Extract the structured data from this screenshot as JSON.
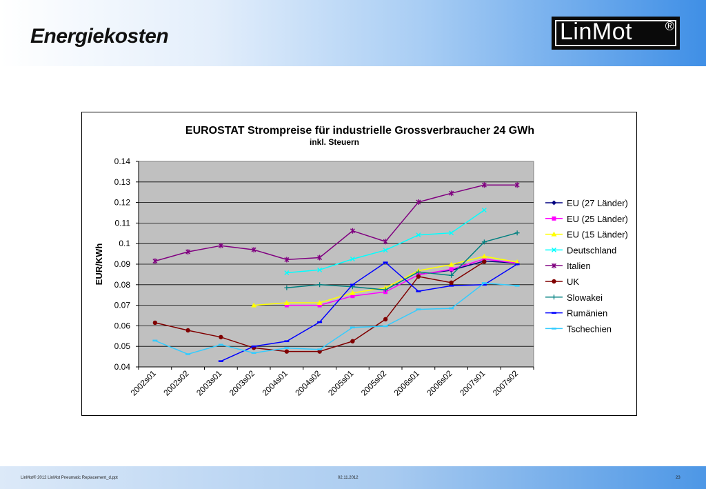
{
  "slide": {
    "title": "Energiekosten",
    "logo_text": "LinMot",
    "logo_mark": "®",
    "footer_left": "LinMot® 2012 LinMot Pneumatic Replacement_d.ppt",
    "footer_date": "02.11.2012",
    "footer_page": "23"
  },
  "colors": {
    "plot_bg": "#c0c0c0",
    "header_accent": "#3f8fe6"
  },
  "chart_data": {
    "type": "line",
    "title": "EUROSTAT Strompreise für industrielle Grossverbraucher 24 GWh",
    "subtitle": "inkl. Steuern",
    "xlabel": "",
    "ylabel": "EUR/KWh",
    "ylim": [
      0.04,
      0.14
    ],
    "yticks": [
      "0.14",
      "0.13",
      "0.12",
      "0.11",
      "0.1",
      "0.09",
      "0.08",
      "0.07",
      "0.06",
      "0.05",
      "0.04"
    ],
    "categories": [
      "2002s01",
      "2002s02",
      "2003s01",
      "2003s02",
      "2004s01",
      "2004s02",
      "2005s01",
      "2005s02",
      "2006s01",
      "2006s02",
      "2007s01",
      "2007s02"
    ],
    "grid": true,
    "legend_position": "right",
    "series": [
      {
        "name": "EU (27 Länder)",
        "color": "#000080",
        "marker": "diamond",
        "values": [
          null,
          null,
          null,
          null,
          null,
          null,
          null,
          null,
          0.085,
          0.087,
          0.0915,
          0.0905
        ]
      },
      {
        "name": "EU (25 Länder)",
        "color": "#ff00ff",
        "marker": "square",
        "values": [
          null,
          null,
          null,
          null,
          0.07,
          0.07,
          0.0745,
          0.0765,
          0.0848,
          0.0875,
          0.0925,
          0.0905
        ]
      },
      {
        "name": "EU (15 Länder)",
        "color": "#ffff00",
        "marker": "triangle",
        "values": [
          null,
          null,
          null,
          0.07,
          0.0712,
          0.0712,
          0.076,
          0.0785,
          0.0868,
          0.0898,
          0.0938,
          0.091
        ]
      },
      {
        "name": "Deutschland",
        "color": "#00ffff",
        "marker": "x",
        "values": [
          null,
          null,
          null,
          null,
          0.0858,
          0.0872,
          0.0925,
          0.0968,
          0.1042,
          0.1052,
          0.1163,
          null
        ]
      },
      {
        "name": "Italien",
        "color": "#800080",
        "marker": "star",
        "values": [
          0.0915,
          0.096,
          0.099,
          0.097,
          0.0922,
          0.0932,
          0.1062,
          0.101,
          0.1202,
          0.1245,
          0.1285,
          0.1285
        ]
      },
      {
        "name": "UK",
        "color": "#800000",
        "marker": "circle",
        "values": [
          0.0615,
          0.0578,
          0.0545,
          0.0493,
          0.0475,
          0.0475,
          0.0525,
          0.0632,
          0.084,
          0.081,
          0.0912,
          null
        ]
      },
      {
        "name": "Slowakei",
        "color": "#008080",
        "marker": "plus",
        "values": [
          null,
          null,
          null,
          null,
          0.0785,
          0.08,
          0.079,
          0.0775,
          0.0862,
          0.0845,
          0.1008,
          0.1052
        ]
      },
      {
        "name": "Rumänien",
        "color": "#0000ff",
        "marker": "dash",
        "values": [
          null,
          null,
          0.0428,
          0.05,
          0.0525,
          0.0618,
          0.08,
          0.0908,
          0.0768,
          0.0795,
          0.08,
          0.09
        ]
      },
      {
        "name": "Tschechien",
        "color": "#33ccff",
        "marker": "dash",
        "values": [
          0.0528,
          0.0462,
          0.0508,
          0.0468,
          0.0492,
          0.0485,
          0.0592,
          0.0598,
          0.068,
          0.0685,
          0.0808,
          0.0795
        ]
      }
    ]
  }
}
